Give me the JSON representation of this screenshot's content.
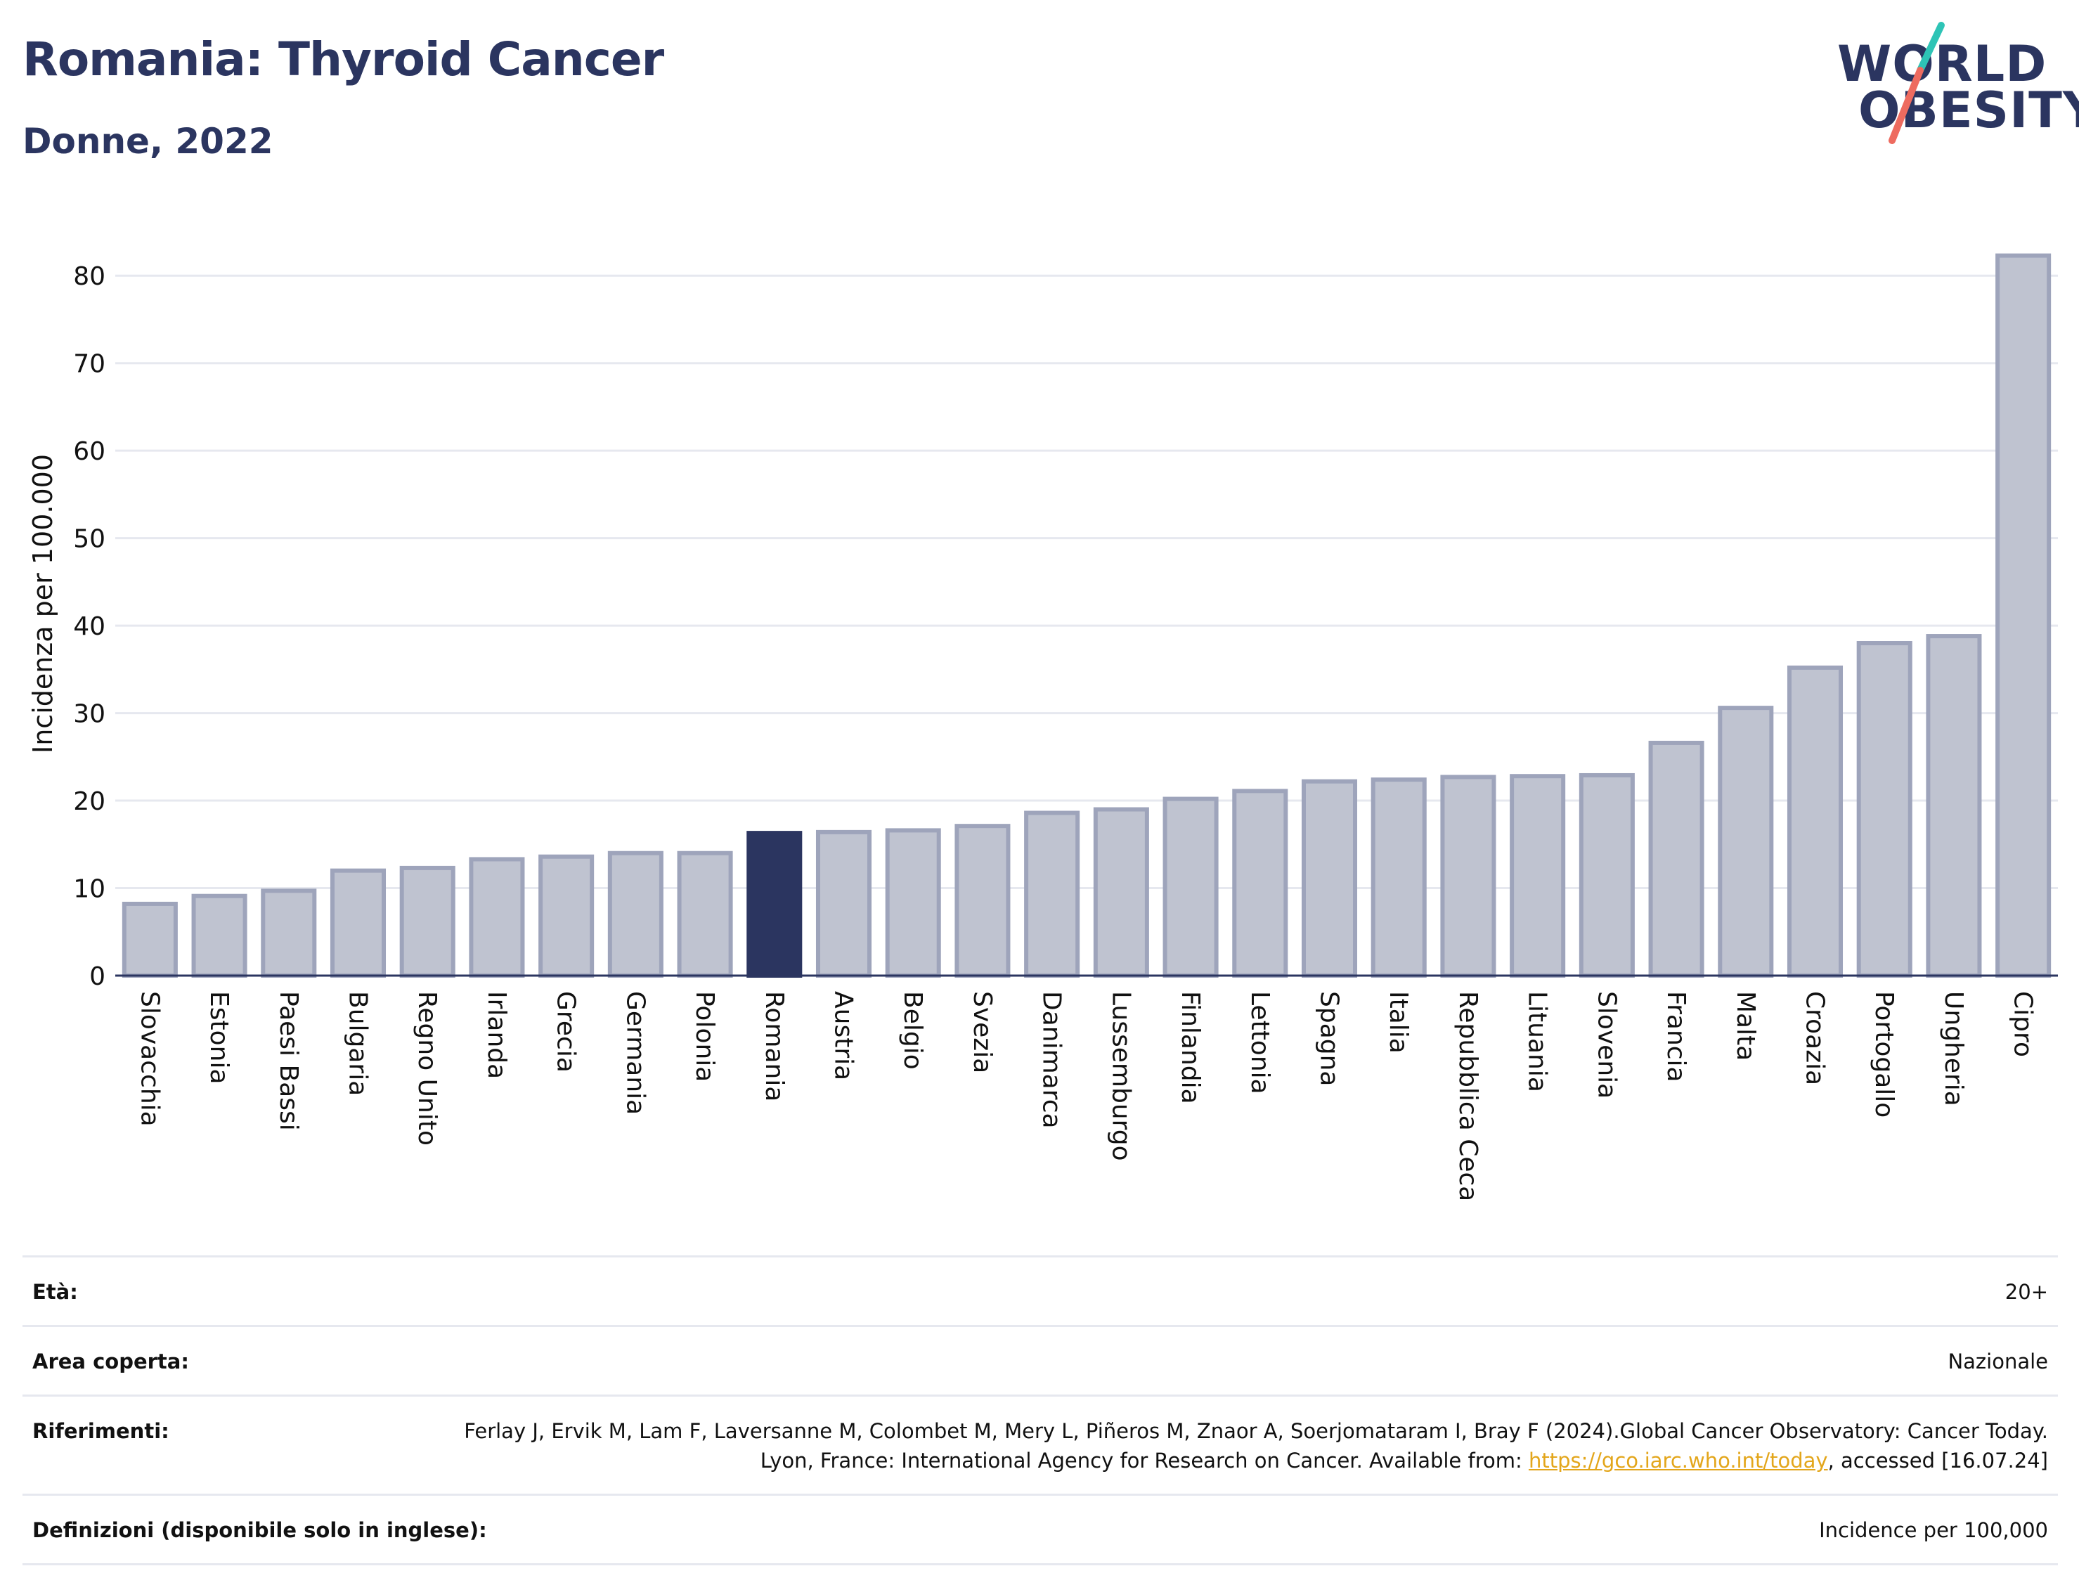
{
  "header": {
    "title": "Romania: Thyroid Cancer",
    "subtitle": "Donne, 2022"
  },
  "logo": {
    "line1": "WORLD",
    "line2": "OBESITY",
    "accent_teal": "#2ec4b6",
    "accent_coral": "#ee6b5f"
  },
  "chart_data": {
    "type": "bar",
    "ylabel": "Incidenza per 100.000",
    "xlabel": "",
    "ylim": [
      0,
      85
    ],
    "yticks": [
      0,
      10,
      20,
      30,
      40,
      50,
      60,
      70,
      80
    ],
    "grid": true,
    "highlight": "Romania",
    "colors": {
      "bar": "#bfc3d0",
      "bar_edge": "#9ea4bb",
      "highlight": "#2b3560",
      "grid": "#e6e8ef",
      "axis": "#2b3560"
    },
    "categories": [
      "Slovacchia",
      "Estonia",
      "Paesi Bassi",
      "Bulgaria",
      "Regno Unito",
      "Irlanda",
      "Grecia",
      "Germania",
      "Polonia",
      "Romania",
      "Austria",
      "Belgio",
      "Svezia",
      "Danimarca",
      "Lussemburgo",
      "Finlandia",
      "Lettonia",
      "Spagna",
      "Italia",
      "Repubblica Ceca",
      "Lituania",
      "Slovenia",
      "Francia",
      "Malta",
      "Croazia",
      "Portogallo",
      "Ungheria",
      "Cipro"
    ],
    "values": [
      8.2,
      9.1,
      9.7,
      12.0,
      12.3,
      13.3,
      13.6,
      14.0,
      14.0,
      16.3,
      16.4,
      16.6,
      17.1,
      18.6,
      19.0,
      20.2,
      21.1,
      22.2,
      22.4,
      22.7,
      22.8,
      22.9,
      26.6,
      30.6,
      35.2,
      38.0,
      38.8,
      82.3
    ]
  },
  "info": {
    "eta_label": "Età:",
    "eta_value": "20+",
    "area_label": "Area coperta:",
    "area_value": "Nazionale",
    "ref_label": "Riferimenti:",
    "ref_text_before": "Ferlay J, Ervik M, Lam F, Laversanne M, Colombet M, Mery L, Piñeros M, Znaor A, Soerjomataram I, Bray F (2024).Global Cancer Observatory: Cancer Today. Lyon, France: International Agency for Research on Cancer. Available from: ",
    "ref_link": "https://gco.iarc.who.int/today",
    "ref_text_after": ", accessed [16.07.24]",
    "def_label": "Definizioni (disponibile solo in inglese):",
    "def_value": "Incidence per 100,000"
  }
}
